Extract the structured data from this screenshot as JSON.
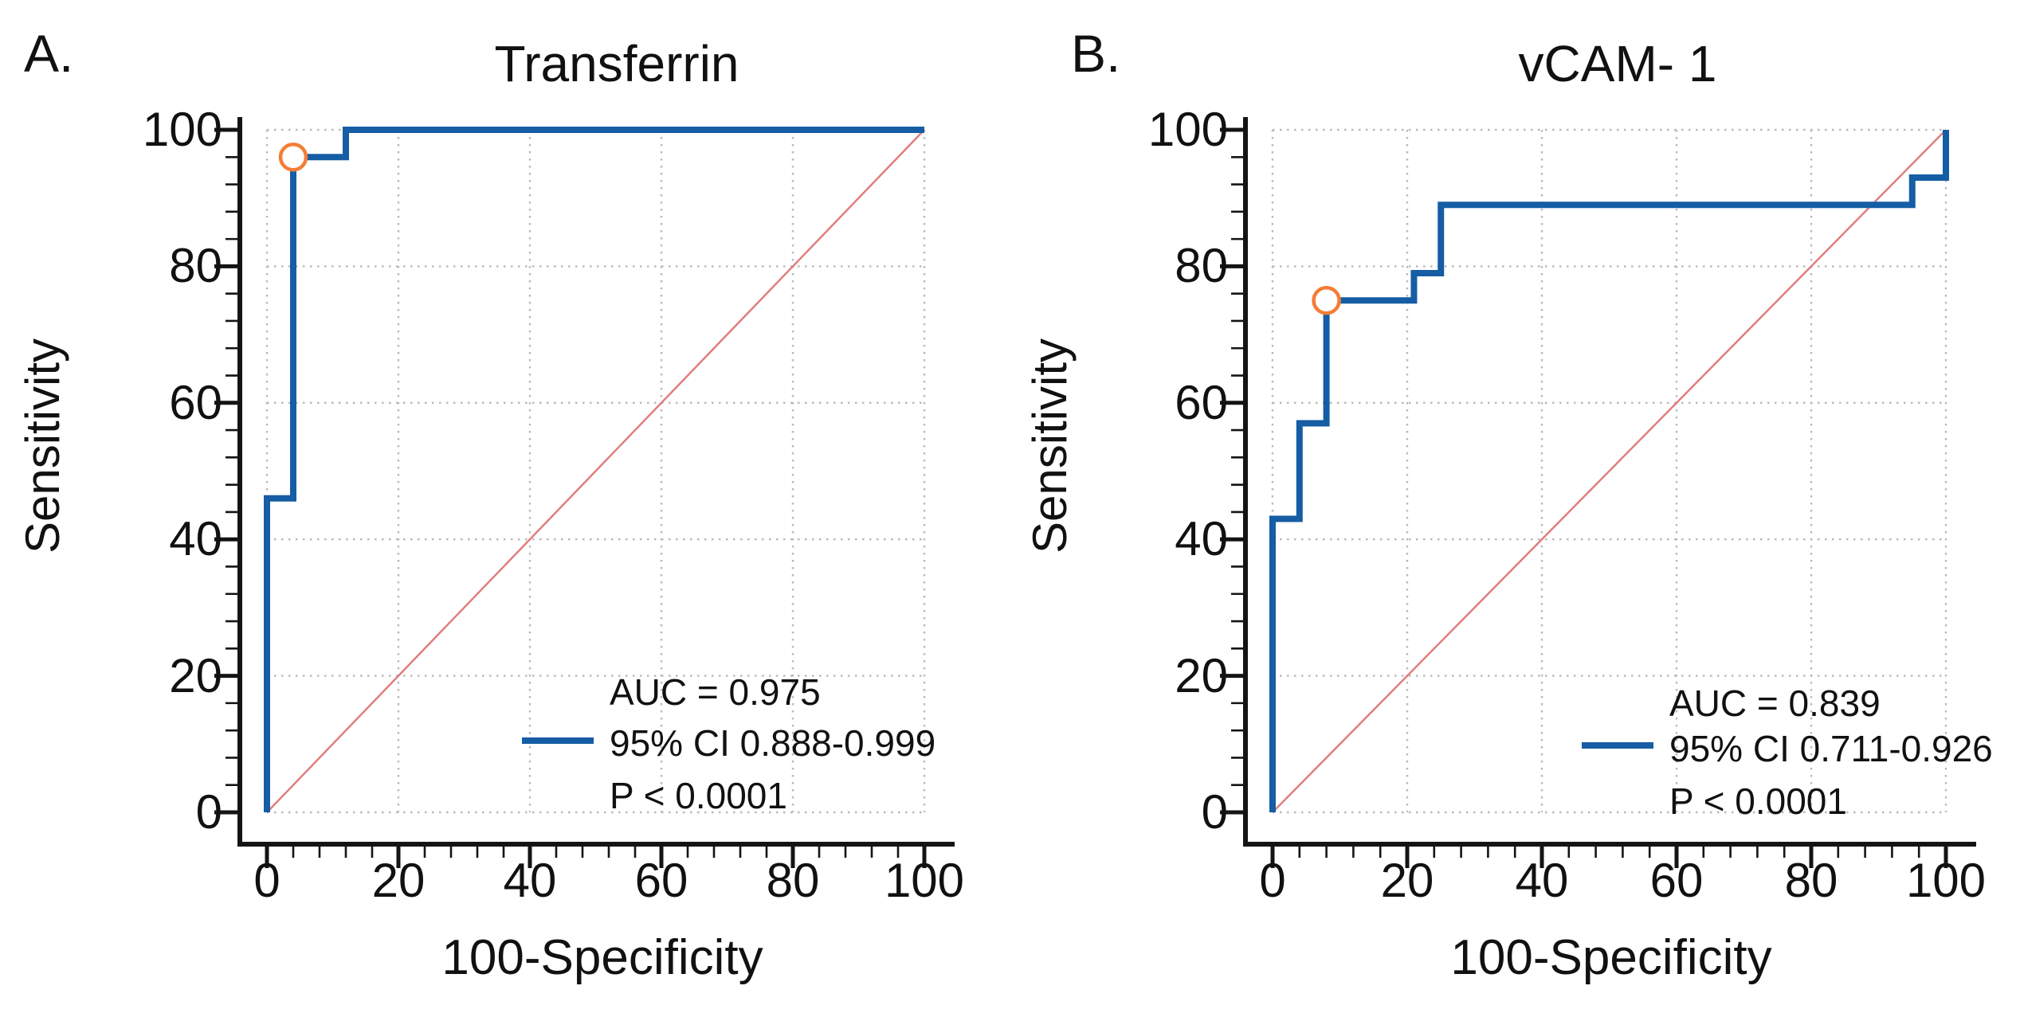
{
  "figure": {
    "background": "#ffffff",
    "panels": [
      {
        "label": "A.",
        "title": "Transferrin",
        "xlabel": "100-Specificity",
        "ylabel": "Sensitivity",
        "legend": {
          "auc": "AUC = 0.975",
          "ci": "95% CI 0.888-0.999",
          "p": "P < 0.0001"
        }
      },
      {
        "label": "B.",
        "title": "vCAM- 1",
        "xlabel": "100-Specificity",
        "ylabel": "Sensitivity",
        "legend": {
          "auc": "AUC = 0.839",
          "ci": "95% CI 0.711-0.926",
          "p": "P < 0.0001"
        }
      }
    ]
  },
  "chart_data": [
    {
      "type": "line",
      "subtype": "roc-curve",
      "panel": "A",
      "title": "Transferrin",
      "xlabel": "100-Specificity",
      "ylabel": "Sensitivity",
      "xlim": [
        0,
        100
      ],
      "ylim": [
        0,
        100
      ],
      "x_ticks": [
        0,
        20,
        40,
        60,
        80,
        100
      ],
      "y_ticks": [
        0,
        20,
        40,
        60,
        80,
        100
      ],
      "x_tick_labels": [
        "0",
        "20",
        "40",
        "60",
        "80",
        "100"
      ],
      "y_tick_labels": [
        "0",
        "20",
        "40",
        "60",
        "80",
        "100"
      ],
      "minor_tick_step": 4,
      "grid": "dotted-major",
      "roc_points": [
        [
          0,
          0
        ],
        [
          0,
          46
        ],
        [
          4,
          46
        ],
        [
          4,
          96
        ],
        [
          12,
          96
        ],
        [
          12,
          100
        ],
        [
          100,
          100
        ]
      ],
      "operating_point": [
        4,
        96
      ],
      "reference_line": [
        [
          0,
          0
        ],
        [
          100,
          100
        ]
      ],
      "auc": 0.975,
      "ci_low": 0.888,
      "ci_high": 0.999,
      "p_value": "P < 0.0001",
      "legend_lines": [
        "AUC = 0.975",
        "95% CI 0.888-0.999",
        "P < 0.0001"
      ],
      "curve_color": "#155da4",
      "reference_color": "#e07a7a",
      "marker_color": "#f47d35",
      "axis_color": "#141414",
      "grid_color": "#b9b9b9",
      "legend_position": "lower-right"
    },
    {
      "type": "line",
      "subtype": "roc-curve",
      "panel": "B",
      "title": "vCAM- 1",
      "xlabel": "100-Specificity",
      "ylabel": "Sensitivity",
      "xlim": [
        0,
        100
      ],
      "ylim": [
        0,
        100
      ],
      "x_ticks": [
        0,
        20,
        40,
        60,
        80,
        100
      ],
      "y_ticks": [
        0,
        20,
        40,
        60,
        80,
        100
      ],
      "x_tick_labels": [
        "0",
        "20",
        "40",
        "60",
        "80",
        "100"
      ],
      "y_tick_labels": [
        "0",
        "20",
        "40",
        "60",
        "80",
        "100"
      ],
      "minor_tick_step": 4,
      "grid": "dotted-major",
      "roc_points": [
        [
          0,
          0
        ],
        [
          0,
          43
        ],
        [
          4,
          43
        ],
        [
          4,
          57
        ],
        [
          8,
          57
        ],
        [
          8,
          75
        ],
        [
          21,
          75
        ],
        [
          21,
          79
        ],
        [
          25,
          79
        ],
        [
          25,
          89
        ],
        [
          95,
          89
        ],
        [
          95,
          93
        ],
        [
          100,
          93
        ],
        [
          100,
          100
        ]
      ],
      "operating_point": [
        8,
        75
      ],
      "reference_line": [
        [
          0,
          0
        ],
        [
          100,
          100
        ]
      ],
      "auc": 0.839,
      "ci_low": 0.711,
      "ci_high": 0.926,
      "p_value": "P < 0.0001",
      "legend_lines": [
        "AUC = 0.839",
        "95% CI 0.711-0.926",
        "P < 0.0001"
      ],
      "curve_color": "#155da4",
      "reference_color": "#e07a7a",
      "marker_color": "#f47d35",
      "axis_color": "#141414",
      "grid_color": "#b9b9b9",
      "legend_position": "lower-right"
    }
  ]
}
